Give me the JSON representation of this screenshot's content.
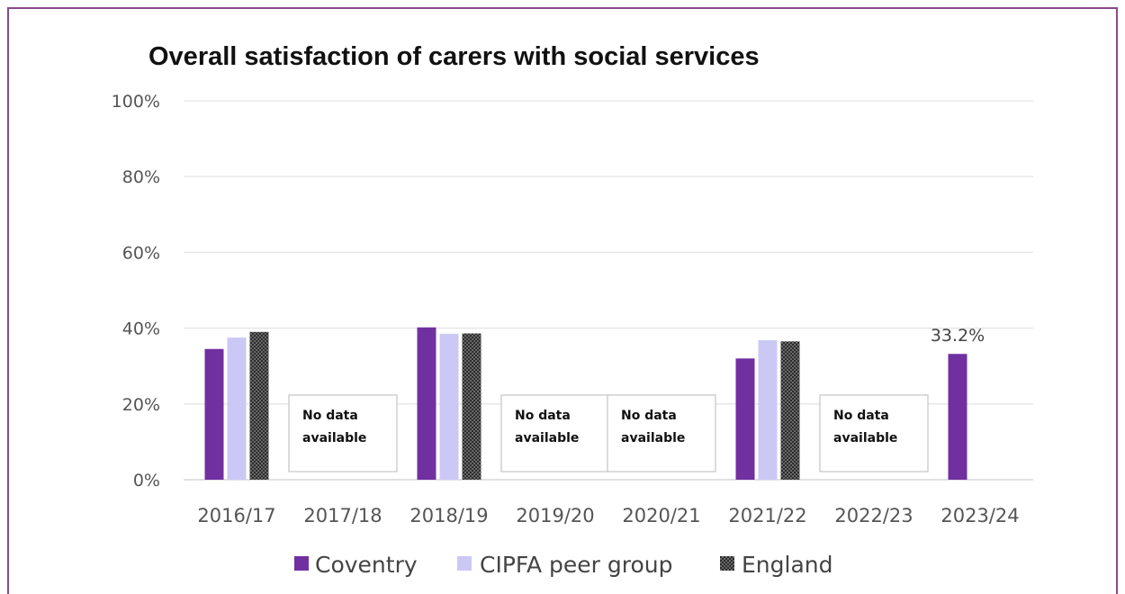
{
  "chart_data": {
    "type": "bar",
    "title": "Overall satisfaction of carers with social services",
    "xlabel": "",
    "ylabel": "",
    "ylim": [
      0,
      100
    ],
    "yticks": [
      "0%",
      "20%",
      "40%",
      "60%",
      "80%",
      "100%"
    ],
    "ytick_values": [
      0,
      20,
      40,
      60,
      80,
      100
    ],
    "grid": true,
    "legend_position": "bottom",
    "categories": [
      "2016/17",
      "2017/18",
      "2018/19",
      "2019/20",
      "2020/21",
      "2021/22",
      "2022/23",
      "2023/24"
    ],
    "series": [
      {
        "name": "Coventry",
        "color": "#7030a0",
        "pattern": "solid",
        "values": [
          34.5,
          null,
          40.2,
          null,
          null,
          32.0,
          null,
          33.2
        ]
      },
      {
        "name": "CIPFA peer group",
        "color": "#ccc8f5",
        "pattern": "solid",
        "values": [
          37.5,
          null,
          38.5,
          null,
          null,
          36.8,
          null,
          null
        ]
      },
      {
        "name": "England",
        "color": "#2b2b2b",
        "pattern": "checker",
        "values": [
          39.0,
          null,
          38.6,
          null,
          null,
          36.5,
          null,
          null
        ]
      }
    ],
    "data_labels": [
      {
        "category": "2023/24",
        "series": "Coventry",
        "text": "33.2%"
      }
    ],
    "annotations": [
      {
        "category": "2017/18",
        "line1": "No data",
        "line2": "available"
      },
      {
        "category": "2019/20",
        "line1": "No data",
        "line2": "available"
      },
      {
        "category": "2020/21",
        "line1": "No data",
        "line2": "available"
      },
      {
        "category": "2022/23",
        "line1": "No data",
        "line2": "available"
      }
    ]
  }
}
